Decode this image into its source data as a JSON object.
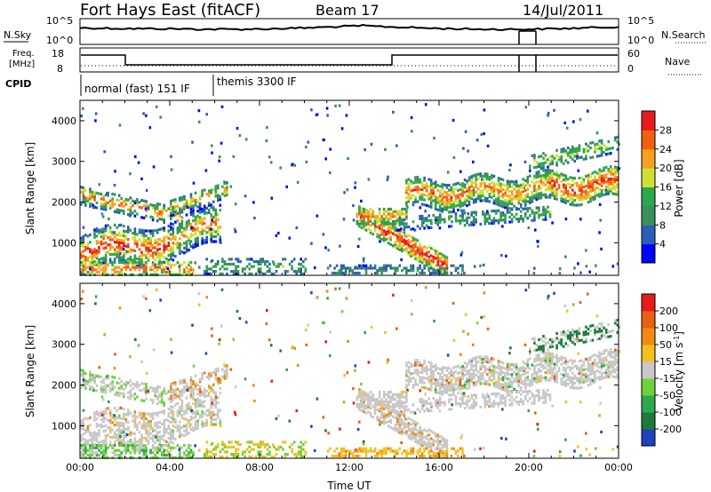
{
  "header": {
    "title": "Fort Hays East (fitACF)",
    "beam": "Beam 17",
    "date": "14/Jul/2011"
  },
  "strips": {
    "nsky_label": "N.Sky",
    "nsky_ticks": [
      "10^5",
      "10^0"
    ],
    "nsearch_label": "N.Search",
    "nsearch_ticks": [
      "10^5",
      "10^0"
    ],
    "freq_label_line1": "Freq.",
    "freq_label_line2": "[MHz]",
    "freq_ticks": [
      "18",
      "8"
    ],
    "nave_label": "Nave",
    "nave_ticks": [
      "60",
      "0"
    ],
    "cpid_label": "CPID",
    "cpid_modes": [
      "normal (fast) 151 IF",
      "themis 3300 IF"
    ]
  },
  "chart_data": [
    {
      "type": "heatmap",
      "panel": "power",
      "ylabel": "Slant Range [km]",
      "xlabel": "",
      "y_ticks": [
        "1000",
        "2000",
        "3000",
        "4000"
      ],
      "ylim": [
        200,
        4500
      ],
      "xlim": [
        0,
        24
      ],
      "colorbar_label": "Power [dB]",
      "colorbar_ticks": [
        "4",
        "8",
        "12",
        "16",
        "20",
        "24",
        "28"
      ],
      "colors": [
        "#0000ff",
        "#2a5fb8",
        "#3a8f5a",
        "#2ea84c",
        "#cde135",
        "#f7a020",
        "#f06010",
        "#e81b1b"
      ],
      "echo_regions_approx": [
        {
          "t_start_h": 0.0,
          "t_end_h": 6.5,
          "range_km": [
            300,
            2700
          ],
          "power_db": "8-28"
        },
        {
          "t_start_h": 12.5,
          "t_end_h": 16.5,
          "range_km": [
            300,
            1800
          ],
          "power_db": "12-28"
        },
        {
          "t_start_h": 16.0,
          "t_end_h": 24.0,
          "range_km": [
            1300,
            3000
          ],
          "power_db": "8-28"
        }
      ]
    },
    {
      "type": "heatmap",
      "panel": "velocity",
      "ylabel": "Slant Range [km]",
      "xlabel": "Time UT",
      "y_ticks": [
        "1000",
        "2000",
        "3000",
        "4000"
      ],
      "x_ticks": [
        "00:00",
        "04:00",
        "08:00",
        "12:00",
        "16:00",
        "20:00",
        "00:00"
      ],
      "ylim": [
        200,
        4500
      ],
      "xlim": [
        0,
        24
      ],
      "colorbar_label": "Velocity [m s",
      "colorbar_label_sup": "-1",
      "colorbar_label_end": "]",
      "colorbar_ticks": [
        "200",
        "100",
        "50",
        "15",
        "-15",
        "-50",
        "-100",
        "-200"
      ],
      "colors": [
        "#2040c0",
        "#1e7a3a",
        "#2ea84c",
        "#6fd13a",
        "#c8c8c8",
        "#f4c020",
        "#f08a10",
        "#e86010",
        "#e81b1b"
      ],
      "ground_scatter_color": "#c8c8c8"
    }
  ]
}
